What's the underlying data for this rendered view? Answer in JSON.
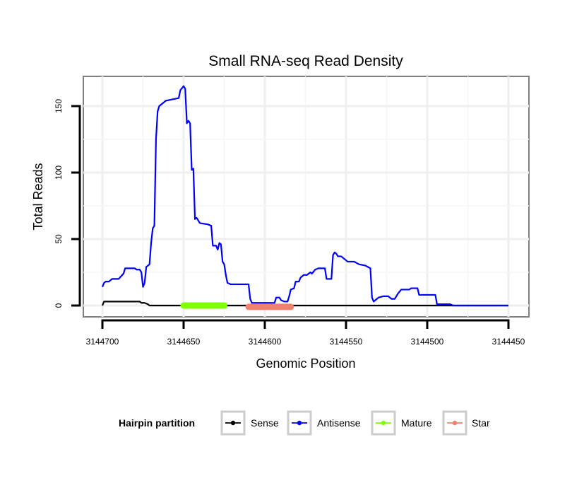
{
  "chart_data": {
    "type": "line",
    "title": "Small RNA-seq Read Density",
    "xlabel": "Genomic Position",
    "ylabel": "Total Reads",
    "xlim": [
      3144700,
      3144450
    ],
    "ylim": [
      -8,
      170
    ],
    "x_ticks": [
      3144700,
      3144650,
      3144600,
      3144550,
      3144500,
      3144450
    ],
    "x_tick_labels": [
      "3144700",
      "3144650",
      "3144600",
      "3144550",
      "3144500",
      "3144450"
    ],
    "y_ticks": [
      0,
      50,
      100,
      150
    ],
    "y_tick_labels": [
      "0",
      "50",
      "100",
      "150"
    ],
    "grid": true,
    "legend": {
      "title": "Hairpin partition",
      "position": "bottom",
      "entries": [
        {
          "label": "Sense",
          "color": "#000000"
        },
        {
          "label": "Antisense",
          "color": "#0000ff"
        },
        {
          "label": "Mature",
          "color": "#7fff00"
        },
        {
          "label": "Star",
          "color": "#f08070"
        }
      ]
    },
    "series": [
      {
        "name": "Sense",
        "color": "#000000",
        "points": [
          [
            3144700,
            0
          ],
          [
            3144699,
            3
          ],
          [
            3144697,
            3
          ],
          [
            3144687,
            3
          ],
          [
            3144680,
            3
          ],
          [
            3144677,
            3
          ],
          [
            3144676,
            2
          ],
          [
            3144674,
            2
          ],
          [
            3144672,
            1
          ],
          [
            3144671,
            0
          ],
          [
            3144450,
            0
          ]
        ]
      },
      {
        "name": "Antisense",
        "color": "#0000ff",
        "points": [
          [
            3144700,
            14
          ],
          [
            3144699,
            17
          ],
          [
            3144698,
            18
          ],
          [
            3144696,
            18
          ],
          [
            3144694,
            20
          ],
          [
            3144690,
            20
          ],
          [
            3144687,
            24
          ],
          [
            3144686,
            28
          ],
          [
            3144682,
            28
          ],
          [
            3144680,
            28
          ],
          [
            3144679,
            27
          ],
          [
            3144677,
            27
          ],
          [
            3144676,
            25
          ],
          [
            3144675,
            14
          ],
          [
            3144674,
            17
          ],
          [
            3144673,
            29
          ],
          [
            3144671,
            31
          ],
          [
            3144670,
            47
          ],
          [
            3144669,
            58
          ],
          [
            3144668,
            60
          ],
          [
            3144667,
            125
          ],
          [
            3144666,
            146
          ],
          [
            3144665,
            150
          ],
          [
            3144663,
            152
          ],
          [
            3144661,
            154
          ],
          [
            3144657,
            155
          ],
          [
            3144653,
            156
          ],
          [
            3144652,
            162
          ],
          [
            3144650,
            165
          ],
          [
            3144649,
            163
          ],
          [
            3144648,
            137
          ],
          [
            3144647,
            139
          ],
          [
            3144646,
            137
          ],
          [
            3144645,
            102
          ],
          [
            3144644,
            103
          ],
          [
            3144643,
            65
          ],
          [
            3144642,
            66
          ],
          [
            3144640,
            62
          ],
          [
            3144635,
            61
          ],
          [
            3144633,
            60
          ],
          [
            3144632,
            45
          ],
          [
            3144630,
            45
          ],
          [
            3144629,
            42
          ],
          [
            3144628,
            47
          ],
          [
            3144627,
            46
          ],
          [
            3144626,
            33
          ],
          [
            3144625,
            31
          ],
          [
            3144624,
            23
          ],
          [
            3144623,
            17
          ],
          [
            3144621,
            16
          ],
          [
            3144614,
            16
          ],
          [
            3144610,
            16
          ],
          [
            3144609,
            5
          ],
          [
            3144608,
            2
          ],
          [
            3144606,
            2
          ],
          [
            3144595,
            2
          ],
          [
            3144594,
            2
          ],
          [
            3144593,
            6
          ],
          [
            3144591,
            6
          ],
          [
            3144590,
            4
          ],
          [
            3144588,
            3
          ],
          [
            3144586,
            3
          ],
          [
            3144585,
            7
          ],
          [
            3144584,
            12
          ],
          [
            3144582,
            13
          ],
          [
            3144581,
            18
          ],
          [
            3144579,
            18
          ],
          [
            3144578,
            21
          ],
          [
            3144576,
            23
          ],
          [
            3144574,
            23
          ],
          [
            3144572,
            25
          ],
          [
            3144571,
            24
          ],
          [
            3144569,
            27
          ],
          [
            3144567,
            28
          ],
          [
            3144563,
            28
          ],
          [
            3144562,
            20
          ],
          [
            3144559,
            20
          ],
          [
            3144558,
            38
          ],
          [
            3144557,
            40
          ],
          [
            3144556,
            39
          ],
          [
            3144555,
            37
          ],
          [
            3144553,
            37
          ],
          [
            3144549,
            33
          ],
          [
            3144545,
            33
          ],
          [
            3144542,
            31
          ],
          [
            3144538,
            30
          ],
          [
            3144535,
            28
          ],
          [
            3144534,
            6
          ],
          [
            3144533,
            3
          ],
          [
            3144532,
            4
          ],
          [
            3144530,
            6
          ],
          [
            3144527,
            7
          ],
          [
            3144524,
            7
          ],
          [
            3144522,
            5
          ],
          [
            3144520,
            5
          ],
          [
            3144518,
            9
          ],
          [
            3144516,
            12
          ],
          [
            3144514,
            12
          ],
          [
            3144511,
            12
          ],
          [
            3144510,
            13
          ],
          [
            3144506,
            13
          ],
          [
            3144505,
            8
          ],
          [
            3144500,
            8
          ],
          [
            3144495,
            8
          ],
          [
            3144494,
            1
          ],
          [
            3144492,
            1
          ],
          [
            3144486,
            1
          ],
          [
            3144484,
            0
          ],
          [
            3144450,
            0
          ]
        ]
      },
      {
        "name": "Mature",
        "color": "#7fff00",
        "points": [
          [
            3144650,
            0
          ],
          [
            3144625,
            0
          ]
        ]
      },
      {
        "name": "Star",
        "color": "#f08070",
        "points": [
          [
            3144610,
            -1
          ],
          [
            3144584,
            -1
          ]
        ]
      }
    ]
  }
}
